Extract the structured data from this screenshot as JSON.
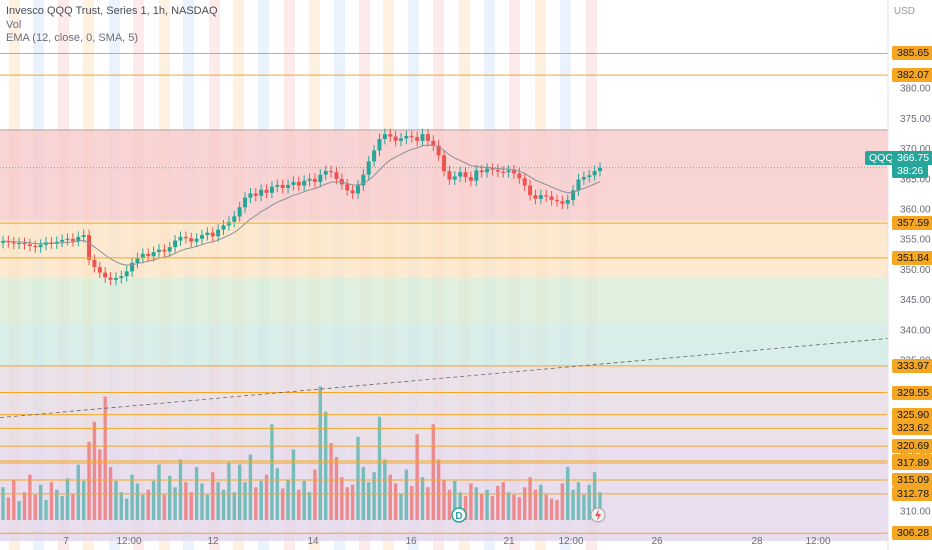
{
  "legend": {
    "title": "Invesco QQQ Trust, Series 1, 1h, NASDAQ",
    "vol": "Vol",
    "ema": "EMA (12, close, 0, SMA, 5)"
  },
  "axis": {
    "currency": "USD",
    "ticks": [
      "380.00",
      "375.00",
      "370.00",
      "365.00",
      "360.00",
      "355.00",
      "350.00",
      "345.00",
      "340.00",
      "335.00",
      "330.00",
      "325.00",
      "320.00",
      "315.00",
      "310.00"
    ],
    "x_labels": [
      "7",
      "12:00",
      "12",
      "14",
      "16",
      "21",
      "12:00",
      "26",
      "28",
      "12:00"
    ]
  },
  "current": {
    "symbol": "QQQ",
    "price": "366.75",
    "countdown": "38:26",
    "color": "#26a69a"
  },
  "levels": [
    {
      "label": "385.65",
      "color": "#f5a623"
    },
    {
      "label": "382.07",
      "color": "#f5a623"
    },
    {
      "label": "357.59",
      "color": "#f5a623"
    },
    {
      "label": "351.84",
      "color": "#f5a623"
    },
    {
      "label": "333.97",
      "color": "#f5a623"
    },
    {
      "label": "329.55",
      "color": "#f5a623"
    },
    {
      "label": "325.90",
      "color": "#f5a623"
    },
    {
      "label": "323.62",
      "color": "#f5a623"
    },
    {
      "label": "320.69",
      "color": "#f5a623"
    },
    {
      "label": "318.23",
      "color": "#f5a623"
    },
    {
      "label": "317.89",
      "color": "#f5a623"
    },
    {
      "label": "315.09",
      "color": "#f5a623"
    },
    {
      "label": "312.78",
      "color": "#f5a623"
    },
    {
      "label": "306.28",
      "color": "#f5a623"
    }
  ],
  "zones": [
    {
      "from": 373,
      "to": 358,
      "color": "#f7c9c9"
    },
    {
      "from": 358,
      "to": 348.5,
      "color": "#fbe3c4"
    },
    {
      "from": 348.5,
      "to": 341,
      "color": "#d7ecd6"
    },
    {
      "from": 341,
      "to": 334,
      "color": "#cfe9e4"
    },
    {
      "from": 334,
      "to": 321,
      "color": "#e6dbe3"
    },
    {
      "from": 321,
      "to": 305,
      "color": "#e4d6ea"
    }
  ],
  "markers": {
    "dividend": "D"
  },
  "colors": {
    "up": "#26a69a",
    "down": "#ef5350",
    "ema": "#8c8f96",
    "grid": "#f0f1f3"
  },
  "chart_data": {
    "type": "candlestick",
    "symbol": "QQQ",
    "interval": "1h",
    "ylim": [
      303.5,
      394.5
    ],
    "y_ticks": [
      380,
      375,
      370,
      365,
      360,
      355,
      350,
      345,
      340,
      335,
      330,
      325,
      320,
      315,
      310
    ],
    "closes": [
      354.6,
      354.4,
      354.2,
      354.3,
      354.1,
      353.8,
      353.6,
      354.0,
      354.4,
      354.2,
      354.5,
      354.8,
      355.0,
      354.6,
      355.3,
      355.6,
      351.5,
      350.3,
      349.4,
      348.6,
      348.2,
      348.5,
      348.8,
      349.6,
      351.0,
      351.8,
      352.5,
      352.1,
      352.8,
      353.2,
      352.9,
      353.6,
      354.7,
      355.3,
      355.1,
      354.5,
      355.0,
      355.6,
      356.0,
      355.4,
      356.5,
      357.2,
      357.8,
      358.7,
      360.2,
      361.8,
      362.5,
      362.1,
      363.1,
      362.6,
      363.6,
      363.9,
      363.4,
      363.9,
      364.4,
      363.8,
      364.6,
      364.9,
      364.4,
      365.6,
      366.2,
      366.0,
      364.9,
      364.0,
      363.0,
      362.5,
      363.8,
      365.6,
      367.8,
      369.6,
      371.5,
      372.3,
      371.9,
      371.2,
      371.6,
      372.0,
      371.8,
      371.2,
      372.3,
      371.2,
      370.4,
      368.8,
      366.2,
      364.8,
      365.3,
      366.0,
      365.2,
      364.6,
      366.3,
      366.0,
      366.6,
      366.4,
      366.1,
      366.0,
      366.3,
      365.8,
      365.0,
      363.8,
      362.2,
      361.6,
      362.2,
      362.0,
      361.4,
      361.2,
      360.8,
      361.4,
      363.0,
      364.8,
      365.2,
      365.5,
      366.2,
      366.75
    ],
    "volumes": [
      2.6,
      1.8,
      3.2,
      1.5,
      2.2,
      3.6,
      2.0,
      2.8,
      1.6,
      3.0,
      2.4,
      1.9,
      3.3,
      2.1,
      4.4,
      3.1,
      6.2,
      7.8,
      5.6,
      9.8,
      4.2,
      3.1,
      2.2,
      1.7,
      3.6,
      2.9,
      2.0,
      2.4,
      3.1,
      4.4,
      2.0,
      3.5,
      2.6,
      4.8,
      3.0,
      2.2,
      4.2,
      2.9,
      2.0,
      3.8,
      3.0,
      2.4,
      4.6,
      2.2,
      4.4,
      3.0,
      5.2,
      2.6,
      3.1,
      3.6,
      7.6,
      4.1,
      2.5,
      3.2,
      5.6,
      2.4,
      3.1,
      2.2,
      4.0,
      10.6,
      8.6,
      6.1,
      5.0,
      3.4,
      2.6,
      2.8,
      6.6,
      4.2,
      3.0,
      3.8,
      8.2,
      4.8,
      3.6,
      2.9,
      2.1,
      4.0,
      2.7,
      6.8,
      3.4,
      2.6,
      7.6,
      4.8,
      3.2,
      2.4,
      3.1,
      2.2,
      1.9,
      2.9,
      2.6,
      2.1,
      2.4,
      1.9,
      2.7,
      3.0,
      2.2,
      2.0,
      1.8,
      2.6,
      3.4,
      2.4,
      2.8,
      2.0,
      1.7,
      1.6,
      2.9,
      4.2,
      2.4,
      3.0,
      2.0,
      2.8,
      3.8,
      2.2
    ],
    "hlines": [
      385.65,
      382.07,
      357.59,
      351.84,
      333.97,
      329.55,
      325.9,
      323.62,
      320.69,
      318.23,
      317.89,
      315.09,
      312.78,
      306.28
    ],
    "trendline": {
      "x": [
        "7",
        "28 12:00"
      ],
      "y": [
        325.4,
        338.5
      ]
    },
    "ema_period": 12
  }
}
